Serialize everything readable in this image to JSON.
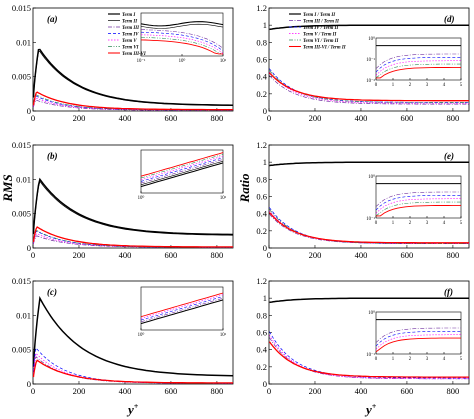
{
  "figure": {
    "ylabel_left": "RMS",
    "ylabel_right": "Ratio",
    "xlabel": "y",
    "xlabel_sup": "+"
  },
  "colors": {
    "term1": "#000000",
    "term2": "#000000",
    "term3": "#7030a0",
    "term4": "#0000ff",
    "term5": "#ff00ff",
    "term6": "#2e8b57",
    "term36": "#ff0000"
  },
  "chart_data": [
    {
      "panel": "(a)",
      "type": "line",
      "xlim": [
        0,
        870
      ],
      "ylim": [
        0,
        0.015
      ],
      "xticks": [
        0,
        200,
        400,
        600,
        800
      ],
      "yticks": [
        0,
        0.005,
        0.01,
        0.015
      ],
      "ytick_labels": [
        "0",
        "0.005",
        "0.01",
        "0.015"
      ],
      "legend": [
        "Term I",
        "Term II",
        "Term III",
        "Term IV",
        "Term V",
        "Term VI",
        "Term III-VI"
      ],
      "series": [
        {
          "name": "Term I",
          "peak_x": 25,
          "peak_y": 0.0092,
          "end_y": 0.0008
        },
        {
          "name": "Term II",
          "peak_x": 25,
          "peak_y": 0.0089,
          "end_y": 0.00075
        },
        {
          "name": "Term III",
          "peak_x": 12,
          "peak_y": 0.0016,
          "end_y": 0.0001
        },
        {
          "name": "Term IV",
          "peak_x": 12,
          "peak_y": 0.0022,
          "end_y": 0.00015
        },
        {
          "name": "Term V",
          "peak_x": 12,
          "peak_y": 0.0019,
          "end_y": 0.00012
        },
        {
          "name": "Term VI",
          "peak_x": 12,
          "peak_y": 0.0024,
          "end_y": 0.00014
        },
        {
          "name": "Term III-VI",
          "peak_x": 15,
          "peak_y": 0.0028,
          "end_y": 0.0002
        }
      ],
      "inset": {
        "xticks": [
          "10⁻¹",
          "10⁰",
          "10¹"
        ]
      }
    },
    {
      "panel": "(b)",
      "type": "line",
      "xlim": [
        0,
        870
      ],
      "ylim": [
        0,
        0.015
      ],
      "xticks": [
        0,
        200,
        400,
        600,
        800
      ],
      "yticks": [
        0,
        0.005,
        0.01,
        0.015
      ],
      "ytick_labels": [
        "0",
        "0.005",
        "0.01",
        "0.015"
      ],
      "series": [
        {
          "name": "Term I",
          "peak_x": 28,
          "peak_y": 0.0101,
          "end_y": 0.0019
        },
        {
          "name": "Term II",
          "peak_x": 28,
          "peak_y": 0.0098,
          "end_y": 0.0018
        },
        {
          "name": "Term III",
          "peak_x": 14,
          "peak_y": 0.0018,
          "end_y": 0.0001
        },
        {
          "name": "Term IV",
          "peak_x": 14,
          "peak_y": 0.0025,
          "end_y": 0.0001
        },
        {
          "name": "Term V",
          "peak_x": 14,
          "peak_y": 0.0021,
          "end_y": 0.0001
        },
        {
          "name": "Term VI",
          "peak_x": 14,
          "peak_y": 0.0026,
          "end_y": 0.0001
        },
        {
          "name": "Term III-VI",
          "peak_x": 16,
          "peak_y": 0.0031,
          "end_y": 0.00015
        }
      ],
      "inset": {
        "xticks": [
          "10⁰",
          "10¹"
        ]
      }
    },
    {
      "panel": "(c)",
      "type": "line",
      "xlim": [
        0,
        870
      ],
      "ylim": [
        0,
        0.015
      ],
      "xticks": [
        0,
        200,
        400,
        600,
        800
      ],
      "yticks": [
        0,
        0.005,
        0.01,
        0.015
      ],
      "ytick_labels": [
        "0",
        "0.005",
        "0.01",
        "0.015"
      ],
      "series": [
        {
          "name": "Term I",
          "peak_x": 30,
          "peak_y": 0.0125,
          "end_y": 0.0011
        },
        {
          "name": "Term III",
          "peak_x": 12,
          "peak_y": 0.004,
          "end_y": 0.0001
        },
        {
          "name": "Term IV",
          "peak_x": 12,
          "peak_y": 0.0053,
          "end_y": 0.0001
        },
        {
          "name": "Term V",
          "peak_x": 12,
          "peak_y": 0.0045,
          "end_y": 0.0001
        },
        {
          "name": "Term III-VI",
          "peak_x": 16,
          "peak_y": 0.0035,
          "end_y": 0.00015
        }
      ],
      "inset": {
        "xticks": [
          "10⁰",
          "10¹"
        ]
      }
    },
    {
      "panel": "(d)",
      "type": "line",
      "xlim": [
        0,
        870
      ],
      "ylim": [
        0,
        1.2
      ],
      "xticks": [
        0,
        200,
        400,
        600,
        800
      ],
      "yticks": [
        0,
        0.2,
        0.4,
        0.6,
        0.8,
        1,
        1.2
      ],
      "ytick_labels": [
        "0",
        "0.2",
        "0.4",
        "0.6",
        "0.8",
        "1",
        "1.2"
      ],
      "legend": [
        "Term I / Term II",
        "Term III / Term II",
        "Term IV / Term II",
        "Term V / Term II",
        "Term VI / Term II",
        "Term III-VI / Term II"
      ],
      "series": [
        {
          "name": "Term I / Term II",
          "start_y": 0.95,
          "end_y": 1.0
        },
        {
          "name": "Term III / Term II",
          "start_y": 0.42,
          "end_y": 0.08
        },
        {
          "name": "Term IV / Term II",
          "start_y": 0.5,
          "end_y": 0.1
        },
        {
          "name": "Term V / Term II",
          "start_y": 0.46,
          "end_y": 0.09
        },
        {
          "name": "Term VI / Term II",
          "start_y": 0.48,
          "end_y": 0.1
        },
        {
          "name": "Term III-VI / Term II",
          "start_y": 0.45,
          "end_y": 0.12
        }
      ],
      "inset": {
        "xticks": [
          "0",
          "1",
          "2",
          "3",
          "4",
          "5"
        ],
        "yticks": [
          "10⁻²",
          "10⁻¹",
          "10⁰"
        ]
      }
    },
    {
      "panel": "(e)",
      "type": "line",
      "xlim": [
        0,
        870
      ],
      "ylim": [
        0,
        1.2
      ],
      "xticks": [
        0,
        200,
        400,
        600,
        800
      ],
      "yticks": [
        0,
        0.2,
        0.4,
        0.6,
        0.8,
        1,
        1.2
      ],
      "ytick_labels": [
        "0",
        "0.2",
        "0.4",
        "0.6",
        "0.8",
        "1",
        "1.2"
      ],
      "series": [
        {
          "name": "Term I / Term II",
          "start_y": 0.96,
          "end_y": 1.0
        },
        {
          "name": "Term III / Term II",
          "start_y": 0.4,
          "end_y": 0.05
        },
        {
          "name": "Term IV / Term II",
          "start_y": 0.48,
          "end_y": 0.05
        },
        {
          "name": "Term V / Term II",
          "start_y": 0.44,
          "end_y": 0.05
        },
        {
          "name": "Term VI / Term II",
          "start_y": 0.46,
          "end_y": 0.05
        },
        {
          "name": "Term III-VI / Term II",
          "start_y": 0.42,
          "end_y": 0.06
        }
      ],
      "inset": {
        "xticks": [
          "0",
          "1",
          "2",
          "3",
          "4",
          "5"
        ],
        "yticks": [
          "10⁻¹",
          "10⁰"
        ]
      }
    },
    {
      "panel": "(f)",
      "type": "line",
      "xlim": [
        0,
        870
      ],
      "ylim": [
        0,
        1.2
      ],
      "xticks": [
        0,
        200,
        400,
        600,
        800
      ],
      "yticks": [
        0,
        0.2,
        0.4,
        0.6,
        0.8,
        1,
        1.2
      ],
      "ytick_labels": [
        "0",
        "0.2",
        "0.4",
        "0.6",
        "0.8",
        "1",
        "1.2"
      ],
      "series": [
        {
          "name": "Term I / Term II",
          "start_y": 0.95,
          "end_y": 1.0
        },
        {
          "name": "Term III / Term II",
          "start_y": 0.55,
          "end_y": 0.06
        },
        {
          "name": "Term IV / Term II",
          "start_y": 0.62,
          "end_y": 0.07
        },
        {
          "name": "Term V / Term II",
          "start_y": 0.58,
          "end_y": 0.06
        },
        {
          "name": "Term III-VI / Term II",
          "start_y": 0.5,
          "end_y": 0.08
        }
      ],
      "inset": {
        "xticks": [
          "0",
          "1",
          "2",
          "3",
          "4",
          "5"
        ],
        "yticks": [
          "10⁻¹",
          "10⁰"
        ]
      }
    }
  ]
}
